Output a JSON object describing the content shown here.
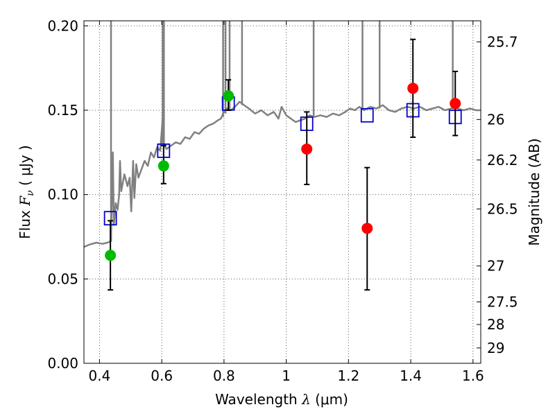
{
  "chart_data": {
    "type": "scatter",
    "xlabel": {
      "pre": "Wavelength  ",
      "sym": "λ",
      "post": " (μm)"
    },
    "ylabel": {
      "pre": "Flux  ",
      "sym": "F",
      "sub": "ν",
      "post": " ( μJy )"
    },
    "y2label": "Magnitude (AB)",
    "xlim": [
      0.35,
      1.625
    ],
    "ylim": [
      0.0,
      0.203
    ],
    "grid": true,
    "x_ticks": [
      {
        "value": 0.4,
        "label": "0.4"
      },
      {
        "value": 0.6,
        "label": "0.6"
      },
      {
        "value": 0.8,
        "label": "0.8"
      },
      {
        "value": 1.0,
        "label": "1"
      },
      {
        "value": 1.2,
        "label": "1.2"
      },
      {
        "value": 1.4,
        "label": "1.4"
      },
      {
        "value": 1.6,
        "label": "1.6"
      }
    ],
    "y_ticks": [
      {
        "value": 0.0,
        "label": "0.00"
      },
      {
        "value": 0.05,
        "label": "0.05"
      },
      {
        "value": 0.1,
        "label": "0.10"
      },
      {
        "value": 0.15,
        "label": "0.15"
      },
      {
        "value": 0.2,
        "label": "0.20"
      }
    ],
    "y2_ticks": [
      {
        "label": "25.7",
        "flux": 0.1905
      },
      {
        "label": "26",
        "flux": 0.1445
      },
      {
        "label": "26.2",
        "flux": 0.1205
      },
      {
        "label": "26.5",
        "flux": 0.0915
      },
      {
        "label": "27",
        "flux": 0.0577
      },
      {
        "label": "27.5",
        "flux": 0.0364
      },
      {
        "label": "28",
        "flux": 0.023
      },
      {
        "label": "29",
        "flux": 0.0091
      }
    ],
    "colors": {
      "model": "#808080",
      "model_photometry": "#0000cc",
      "optical": "#00bb00",
      "nir": "#ff0000",
      "error": "#000000"
    },
    "series": [
      {
        "points": [
          {
            "x": 0.435,
            "y": 0.064,
            "err": [
              0.0435,
              0.0845
            ]
          },
          {
            "x": 0.606,
            "y": 0.117,
            "err": [
              0.1065,
              0.129
            ]
          },
          {
            "x": 0.814,
            "y": 0.1585,
            "err": [
              0.15,
              0.168
            ]
          }
        ]
      },
      {
        "points": [
          {
            "x": 1.066,
            "y": 0.127,
            "err": [
              0.106,
              0.149
            ]
          },
          {
            "x": 1.26,
            "y": 0.08,
            "err": [
              0.0435,
              0.116
            ]
          },
          {
            "x": 1.407,
            "y": 0.163,
            "err": [
              0.134,
              0.192
            ]
          },
          {
            "x": 1.543,
            "y": 0.154,
            "err": [
              0.135,
              0.173
            ]
          }
        ]
      },
      {
        "points": [
          {
            "x": 0.435,
            "y": 0.086
          },
          {
            "x": 0.606,
            "y": 0.126
          },
          {
            "x": 0.814,
            "y": 0.154
          },
          {
            "x": 1.066,
            "y": 0.142
          },
          {
            "x": 1.26,
            "y": 0.147
          },
          {
            "x": 1.407,
            "y": 0.15
          },
          {
            "x": 1.543,
            "y": 0.146
          }
        ]
      },
      {
        "line": [
          [
            0.35,
            0.069
          ],
          [
            0.37,
            0.0705
          ],
          [
            0.39,
            0.0715
          ],
          [
            0.41,
            0.0708
          ],
          [
            0.425,
            0.0715
          ],
          [
            0.437,
            0.0725
          ],
          [
            0.443,
            0.125
          ],
          [
            0.446,
            0.082
          ],
          [
            0.452,
            0.095
          ],
          [
            0.458,
            0.091
          ],
          [
            0.463,
            0.1
          ],
          [
            0.466,
            0.12
          ],
          [
            0.47,
            0.102
          ],
          [
            0.48,
            0.112
          ],
          [
            0.49,
            0.105
          ],
          [
            0.497,
            0.11
          ],
          [
            0.502,
            0.09
          ],
          [
            0.508,
            0.12
          ],
          [
            0.512,
            0.098
          ],
          [
            0.518,
            0.118
          ],
          [
            0.525,
            0.11
          ],
          [
            0.535,
            0.115
          ],
          [
            0.545,
            0.12
          ],
          [
            0.555,
            0.117
          ],
          [
            0.565,
            0.125
          ],
          [
            0.575,
            0.122
          ],
          [
            0.585,
            0.128
          ],
          [
            0.595,
            0.126
          ],
          [
            0.603,
            0.145
          ],
          [
            0.606,
            0.13
          ],
          [
            0.615,
            0.127
          ],
          [
            0.63,
            0.129
          ],
          [
            0.645,
            0.131
          ],
          [
            0.66,
            0.13
          ],
          [
            0.675,
            0.134
          ],
          [
            0.69,
            0.133
          ],
          [
            0.705,
            0.137
          ],
          [
            0.72,
            0.136
          ],
          [
            0.735,
            0.139
          ],
          [
            0.75,
            0.141
          ],
          [
            0.765,
            0.142
          ],
          [
            0.78,
            0.144
          ],
          [
            0.79,
            0.145
          ],
          [
            0.8,
            0.149
          ],
          [
            0.81,
            0.151
          ],
          [
            0.822,
            0.15
          ],
          [
            0.835,
            0.152
          ],
          [
            0.85,
            0.155
          ],
          [
            0.865,
            0.153
          ],
          [
            0.88,
            0.151
          ],
          [
            0.9,
            0.148
          ],
          [
            0.92,
            0.15
          ],
          [
            0.94,
            0.147
          ],
          [
            0.96,
            0.149
          ],
          [
            0.975,
            0.145
          ],
          [
            0.985,
            0.152
          ],
          [
            1.0,
            0.147
          ],
          [
            1.015,
            0.145
          ],
          [
            1.03,
            0.143
          ],
          [
            1.045,
            0.144
          ],
          [
            1.06,
            0.145
          ],
          [
            1.075,
            0.147
          ],
          [
            1.09,
            0.146
          ],
          [
            1.11,
            0.147
          ],
          [
            1.13,
            0.146
          ],
          [
            1.15,
            0.148
          ],
          [
            1.17,
            0.147
          ],
          [
            1.19,
            0.149
          ],
          [
            1.205,
            0.151
          ],
          [
            1.22,
            0.15
          ],
          [
            1.235,
            0.152
          ],
          [
            1.25,
            0.15
          ],
          [
            1.27,
            0.152
          ],
          [
            1.29,
            0.151
          ],
          [
            1.31,
            0.153
          ],
          [
            1.33,
            0.15
          ],
          [
            1.35,
            0.149
          ],
          [
            1.37,
            0.151
          ],
          [
            1.39,
            0.152
          ],
          [
            1.41,
            0.151
          ],
          [
            1.43,
            0.152
          ],
          [
            1.45,
            0.15
          ],
          [
            1.47,
            0.151
          ],
          [
            1.49,
            0.152
          ],
          [
            1.51,
            0.15
          ],
          [
            1.53,
            0.151
          ],
          [
            1.55,
            0.151
          ],
          [
            1.57,
            0.15
          ],
          [
            1.59,
            0.151
          ],
          [
            1.61,
            0.15
          ],
          [
            1.625,
            0.15
          ]
        ],
        "lines": [
          {
            "x": 0.437,
            "y0": 0.072,
            "y1": 0.203
          },
          {
            "x": 0.603,
            "y0": 0.13,
            "y1": 0.203
          },
          {
            "x": 0.607,
            "y0": 0.128,
            "y1": 0.203
          },
          {
            "x": 0.797,
            "y0": 0.146,
            "y1": 0.203
          },
          {
            "x": 0.805,
            "y0": 0.148,
            "y1": 0.203
          },
          {
            "x": 0.818,
            "y0": 0.15,
            "y1": 0.203
          },
          {
            "x": 0.858,
            "y0": 0.153,
            "y1": 0.203
          },
          {
            "x": 1.088,
            "y0": 0.146,
            "y1": 0.203
          },
          {
            "x": 1.245,
            "y0": 0.151,
            "y1": 0.203
          },
          {
            "x": 1.3,
            "y0": 0.151,
            "y1": 0.203
          },
          {
            "x": 1.535,
            "y0": 0.151,
            "y1": 0.203
          }
        ]
      }
    ]
  }
}
